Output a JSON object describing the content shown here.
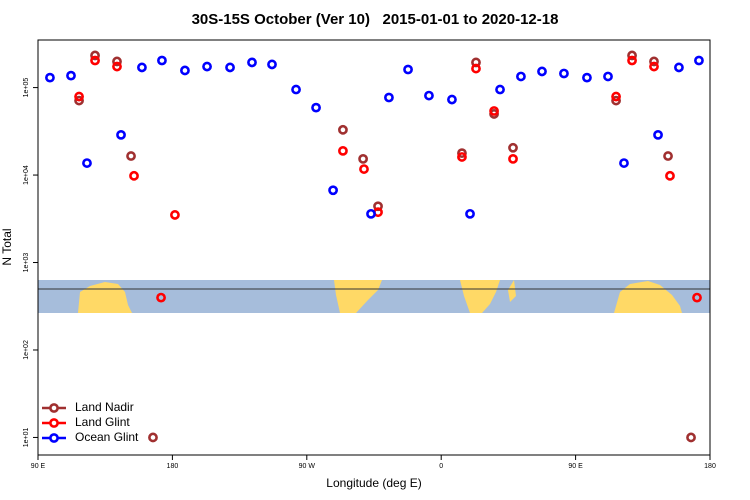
{
  "chart_data": {
    "type": "scatter",
    "title": "30S-15S October (Ver 10)   2015-01-01 to 2020-12-18",
    "x_label": "Longitude (deg E)",
    "y_label": "N Total",
    "log_y": true,
    "legend": "bottom-left",
    "xlim": [
      90,
      540
    ],
    "xticks": [
      {
        "value": 90,
        "label": "90 E"
      },
      {
        "value": 180,
        "label": "180"
      },
      {
        "value": 270,
        "label": "90 W"
      },
      {
        "value": 360,
        "label": "0"
      },
      {
        "value": 450,
        "label": "90 E"
      },
      {
        "value": 540,
        "label": "180"
      }
    ],
    "ylim": [
      6.3,
      350000
    ],
    "yticks": [
      {
        "value": 10,
        "label": "1e+01"
      },
      {
        "value": 100,
        "label": "1e+02"
      },
      {
        "value": 1000,
        "label": "1e+03"
      },
      {
        "value": 10000,
        "label": "1e+04"
      },
      {
        "value": 100000,
        "label": "1e+05"
      }
    ],
    "series": [
      {
        "name": "Land Nadir",
        "color": "#a03030",
        "x": [
          117.5,
          128.2,
          142.9,
          152.3,
          167.0,
          294.2,
          307.7,
          317.7,
          373.9,
          383.3,
          395.4,
          408.1,
          477.1,
          487.8,
          502.5,
          511.9,
          527.3
        ],
        "values": [
          71000,
          233000,
          199000,
          16500,
          10,
          32900,
          15300,
          4400,
          17800,
          194000,
          50000,
          20500,
          71000,
          233000,
          199000,
          16500,
          10
        ]
      },
      {
        "name": "Land Glint",
        "color": "#ff0000",
        "x": [
          117.5,
          128.2,
          142.9,
          154.3,
          172.4,
          181.7,
          294.2,
          308.3,
          317.7,
          373.9,
          383.3,
          395.4,
          408.1,
          477.1,
          487.8,
          502.5,
          513.2,
          531.3
        ],
        "values": [
          79000,
          204000,
          174000,
          9800,
          397,
          3500,
          18900,
          11700,
          3760,
          16100,
          165000,
          54000,
          15300,
          79000,
          204000,
          174000,
          9800,
          397
        ]
      },
      {
        "name": "Ocean Glint",
        "color": "#0000ff",
        "x": [
          98.0,
          112.1,
          122.8,
          145.6,
          159.6,
          173.0,
          188.4,
          203.2,
          218.6,
          233.3,
          246.7,
          262.8,
          276.2,
          287.6,
          313.0,
          325.0,
          337.8,
          351.8,
          367.2,
          379.3,
          399.4,
          413.4,
          427.5,
          442.2,
          457.6,
          471.7,
          482.4,
          505.2,
          519.2,
          532.6
        ],
        "values": [
          130000,
          137000,
          13700,
          28800,
          170000,
          204000,
          157000,
          174000,
          170000,
          194000,
          184000,
          95000,
          59000,
          6700,
          3600,
          77000,
          161000,
          81000,
          73000,
          3600,
          95000,
          134000,
          153000,
          145000,
          130000,
          134000,
          13700,
          28800,
          170000,
          204000
        ]
      }
    ]
  }
}
